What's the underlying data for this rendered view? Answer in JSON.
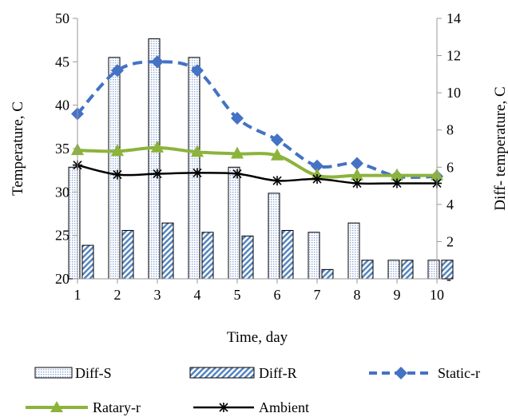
{
  "chart_data": {
    "type": "bar+line",
    "xlabel": "Time, day",
    "ylabel": "Temperature, C",
    "y2label": "Diff- temperature, C",
    "x": [
      1,
      2,
      3,
      4,
      5,
      6,
      7,
      8,
      9,
      10
    ],
    "xlim": [
      1,
      10
    ],
    "ylim": [
      20,
      50
    ],
    "yticks": [
      20,
      25,
      30,
      35,
      40,
      45,
      50
    ],
    "y2lim": [
      0,
      14
    ],
    "y2ticks": [
      "-",
      "2",
      "4",
      "6",
      "8",
      "10",
      "12",
      "14"
    ],
    "xticks": [
      "1",
      "2",
      "3",
      "4",
      "5",
      "6",
      "7",
      "8",
      "9",
      "10"
    ],
    "grid": false,
    "legend": "bottom",
    "bar_series": [
      {
        "name": "Diff-S",
        "axis": "right",
        "pattern": "dots",
        "values": [
          6.0,
          11.9,
          12.9,
          11.9,
          6.0,
          4.6,
          2.5,
          3.0,
          1.0,
          1.0
        ]
      },
      {
        "name": "Diff-R",
        "axis": "right",
        "pattern": "diagonal",
        "values": [
          1.8,
          2.6,
          3.0,
          2.5,
          2.3,
          2.6,
          0.5,
          1.0,
          1.0,
          1.0
        ]
      }
    ],
    "line_series": [
      {
        "name": "Static-r",
        "axis": "left",
        "color": "#4472C4",
        "marker": "diamond",
        "dashed": true,
        "values": [
          39,
          44,
          45,
          44,
          38.5,
          36,
          33,
          33.3,
          31.8,
          31.8
        ]
      },
      {
        "name": "Ratary-r",
        "axis": "left",
        "color": "#8CB33C",
        "marker": "triangle",
        "dashed": false,
        "values": [
          34.8,
          34.7,
          35.1,
          34.6,
          34.4,
          34.2,
          31.9,
          31.9,
          31.9,
          31.9
        ]
      },
      {
        "name": "Ambient",
        "axis": "left",
        "color": "#000000",
        "marker": "star",
        "dashed": false,
        "values": [
          33.1,
          32,
          32.1,
          32.2,
          32.1,
          31.3,
          31.5,
          31,
          31,
          31
        ]
      }
    ]
  }
}
